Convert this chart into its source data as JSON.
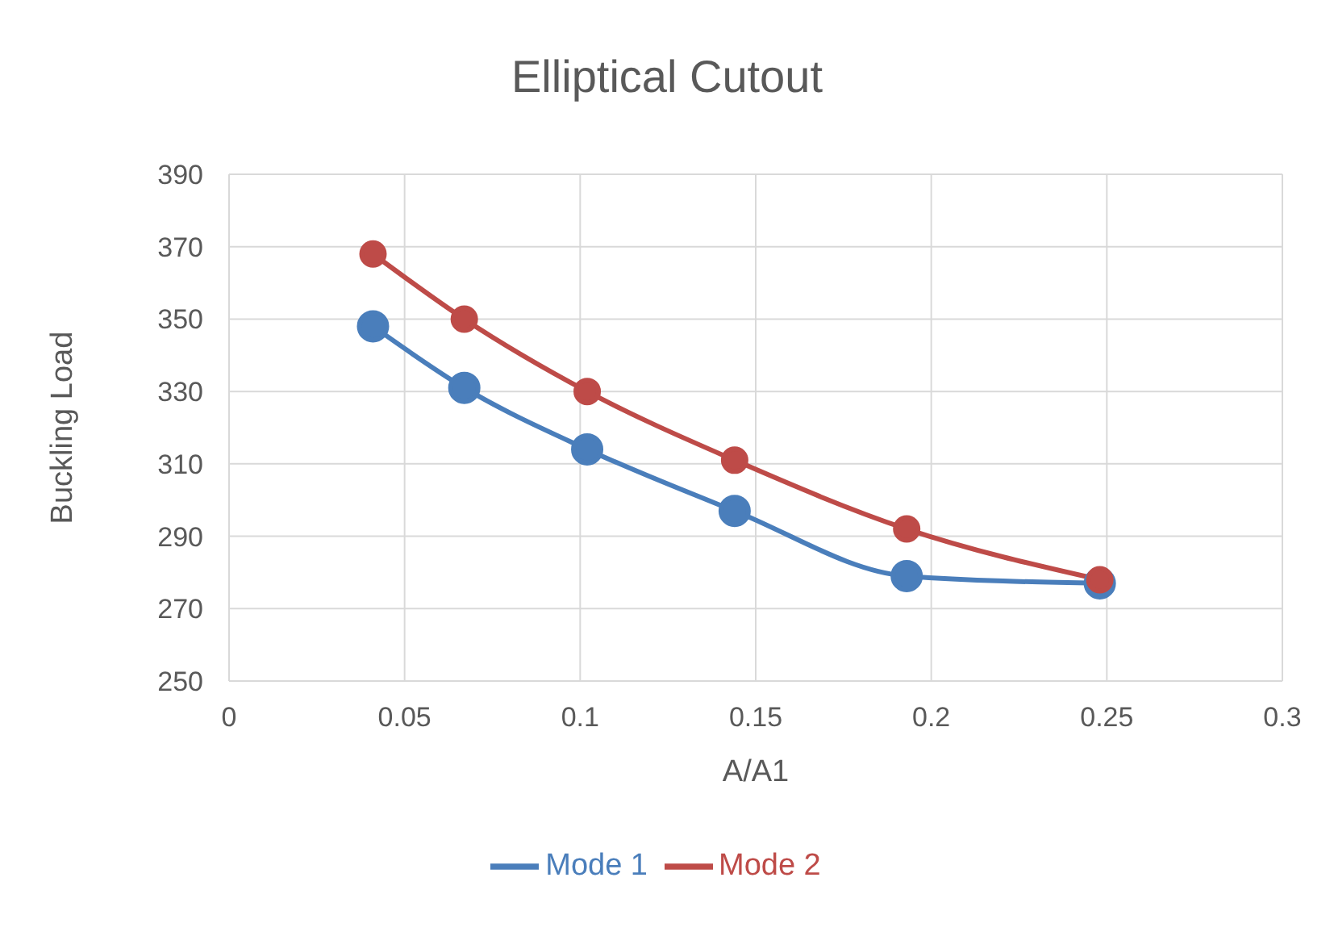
{
  "chart_data": {
    "type": "line",
    "title": "Elliptical Cutout",
    "xlabel": "A/A1",
    "ylabel": "Buckling Load",
    "x": [
      0.041,
      0.067,
      0.102,
      0.144,
      0.193,
      0.248
    ],
    "series": [
      {
        "name": "Mode 1",
        "color": "#4a7ebb",
        "values": [
          348,
          331,
          314,
          297,
          279,
          277
        ]
      },
      {
        "name": "Mode 2",
        "color": "#be4b48",
        "values": [
          368,
          350,
          330,
          311,
          292,
          278
        ]
      }
    ],
    "xlim": [
      0,
      0.3
    ],
    "xticks": [
      0,
      0.05,
      0.1,
      0.15,
      0.2,
      0.25,
      0.3
    ],
    "ylim": [
      250,
      390
    ],
    "yticks": [
      250,
      270,
      290,
      310,
      330,
      350,
      370,
      390
    ],
    "grid": true,
    "legend": "bottom",
    "marker": "circle",
    "line_style": "solid"
  }
}
